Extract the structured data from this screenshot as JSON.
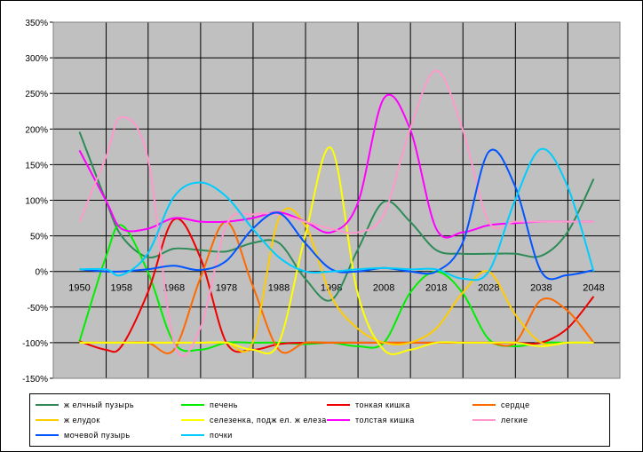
{
  "chart_data": {
    "type": "line",
    "title": "",
    "xlabel": "",
    "ylabel": "",
    "x": [
      1950,
      1955,
      1958,
      1963,
      1968,
      1973,
      1978,
      1983,
      1988,
      1993,
      1998,
      2003,
      2008,
      2013,
      2018,
      2023,
      2028,
      2033,
      2038,
      2043,
      2048
    ],
    "x_tick_labels": [
      "1950",
      "1958",
      "1968",
      "1978",
      "1988",
      "1998",
      "2008",
      "2018",
      "2028",
      "2038",
      "2048"
    ],
    "y_tick_labels": [
      "350%",
      "300%",
      "250%",
      "200%",
      "150%",
      "100%",
      "50%",
      "0%",
      "-50%",
      "-100%",
      "-150%"
    ],
    "ylim": [
      -150,
      350
    ],
    "grid": true,
    "legend_position": "bottom",
    "series": [
      {
        "name": "ж елчный пузырь",
        "color": "#2e8b57",
        "values": [
          196,
          100,
          50,
          20,
          32,
          30,
          28,
          40,
          40,
          -10,
          -40,
          30,
          98,
          70,
          30,
          25,
          25,
          25,
          22,
          55,
          130
        ]
      },
      {
        "name": "печень",
        "color": "#00ee00",
        "values": [
          -98,
          20,
          65,
          0,
          -100,
          -110,
          -100,
          -100,
          -100,
          -102,
          -100,
          -105,
          -100,
          -30,
          0,
          -30,
          -95,
          -105,
          -100,
          -100,
          -100
        ]
      },
      {
        "name": "тонкая кишка",
        "color": "#ee0000",
        "values": [
          -98,
          -110,
          -105,
          -30,
          73,
          20,
          -100,
          -110,
          -102,
          -100,
          -100,
          -100,
          -100,
          -100,
          -100,
          -100,
          -100,
          -100,
          -100,
          -80,
          -35
        ]
      },
      {
        "name": "сердце",
        "color": "#ff6a00",
        "values": [
          -100,
          -100,
          -100,
          -100,
          -110,
          -10,
          70,
          -20,
          -110,
          -100,
          -100,
          -100,
          -100,
          -100,
          -100,
          -100,
          -100,
          -100,
          -40,
          -55,
          -100
        ]
      },
      {
        "name": "ж елудок",
        "color": "#ffcc00",
        "values": [
          -100,
          -100,
          -100,
          -100,
          -100,
          -100,
          -100,
          -100,
          75,
          65,
          -35,
          -80,
          -100,
          -100,
          -80,
          -30,
          0,
          -60,
          -100,
          -100,
          -100
        ]
      },
      {
        "name": "селезенка, подж ел. ж елеза",
        "color": "#ffff00",
        "values": [
          -100,
          -100,
          -100,
          -100,
          -100,
          -100,
          -100,
          -110,
          -100,
          50,
          173,
          -30,
          -110,
          -110,
          -100,
          -100,
          -100,
          -100,
          -105,
          -100,
          -100
        ]
      },
      {
        "name": "толстая кишка",
        "color": "#ff00ff",
        "values": [
          170,
          100,
          60,
          60,
          75,
          70,
          70,
          75,
          83,
          70,
          55,
          95,
          243,
          200,
          60,
          55,
          65,
          68,
          70,
          70,
          70
        ]
      },
      {
        "name": "легкие",
        "color": "#ff99cc",
        "values": [
          70,
          160,
          217,
          160,
          -100,
          -80,
          65,
          80,
          80,
          70,
          60,
          55,
          80,
          200,
          282,
          200,
          70,
          70,
          70,
          70,
          70
        ]
      },
      {
        "name": "мочевой пузырь",
        "color": "#0055ff",
        "values": [
          3,
          0,
          0,
          3,
          8,
          2,
          15,
          60,
          82,
          40,
          3,
          0,
          5,
          0,
          0,
          40,
          168,
          120,
          0,
          -5,
          2
        ]
      },
      {
        "name": "почки",
        "color": "#00ccff",
        "values": [
          3,
          3,
          -5,
          25,
          105,
          125,
          105,
          60,
          20,
          0,
          0,
          3,
          5,
          3,
          3,
          -10,
          0,
          100,
          172,
          120,
          0
        ]
      }
    ]
  },
  "legend": {
    "items": [
      {
        "label": "ж елчный пузырь"
      },
      {
        "label": "печень"
      },
      {
        "label": "тонкая кишка"
      },
      {
        "label": "сердце"
      },
      {
        "label": "ж елудок"
      },
      {
        "label": "селезенка, подж ел. ж елеза"
      },
      {
        "label": "толстая кишка"
      },
      {
        "label": "легкие"
      },
      {
        "label": "мочевой пузырь"
      },
      {
        "label": "почки"
      }
    ]
  }
}
